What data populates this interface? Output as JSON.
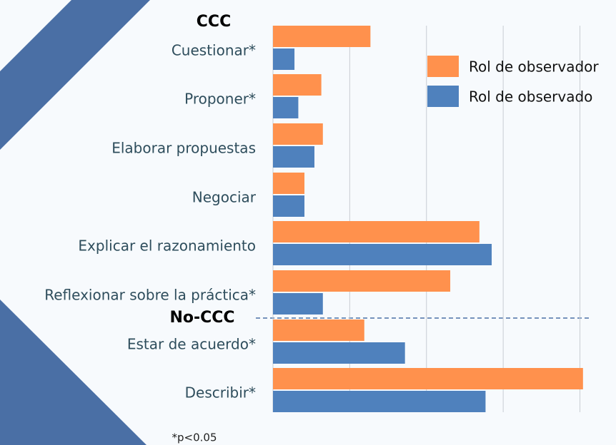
{
  "chart_data": {
    "type": "bar",
    "orientation": "horizontal",
    "categories": [
      "Cuestionar*",
      "Proponer*",
      "Elaborar propuestas",
      "Negociar",
      "Explicar el razonamiento",
      "Reflexionar sobre la práctica*",
      "Estar de acuerdo*",
      "Describir*"
    ],
    "series": [
      {
        "name": "Rol de observador",
        "color": "#ff914d",
        "values": [
          1.27,
          0.63,
          0.65,
          0.41,
          2.69,
          2.31,
          1.19,
          4.04
        ]
      },
      {
        "name": "Rol de observado",
        "color": "#4f81bd",
        "values": [
          0.28,
          0.33,
          0.54,
          0.41,
          2.85,
          0.65,
          1.72,
          2.77
        ]
      }
    ],
    "xlim": [
      0,
      4.2
    ],
    "xticks": [
      0,
      1,
      2,
      3,
      4
    ],
    "grid": true,
    "legend": "top-right",
    "group_labels": [
      "CCC",
      "No-CCC"
    ],
    "note": "*p<0.05"
  }
}
